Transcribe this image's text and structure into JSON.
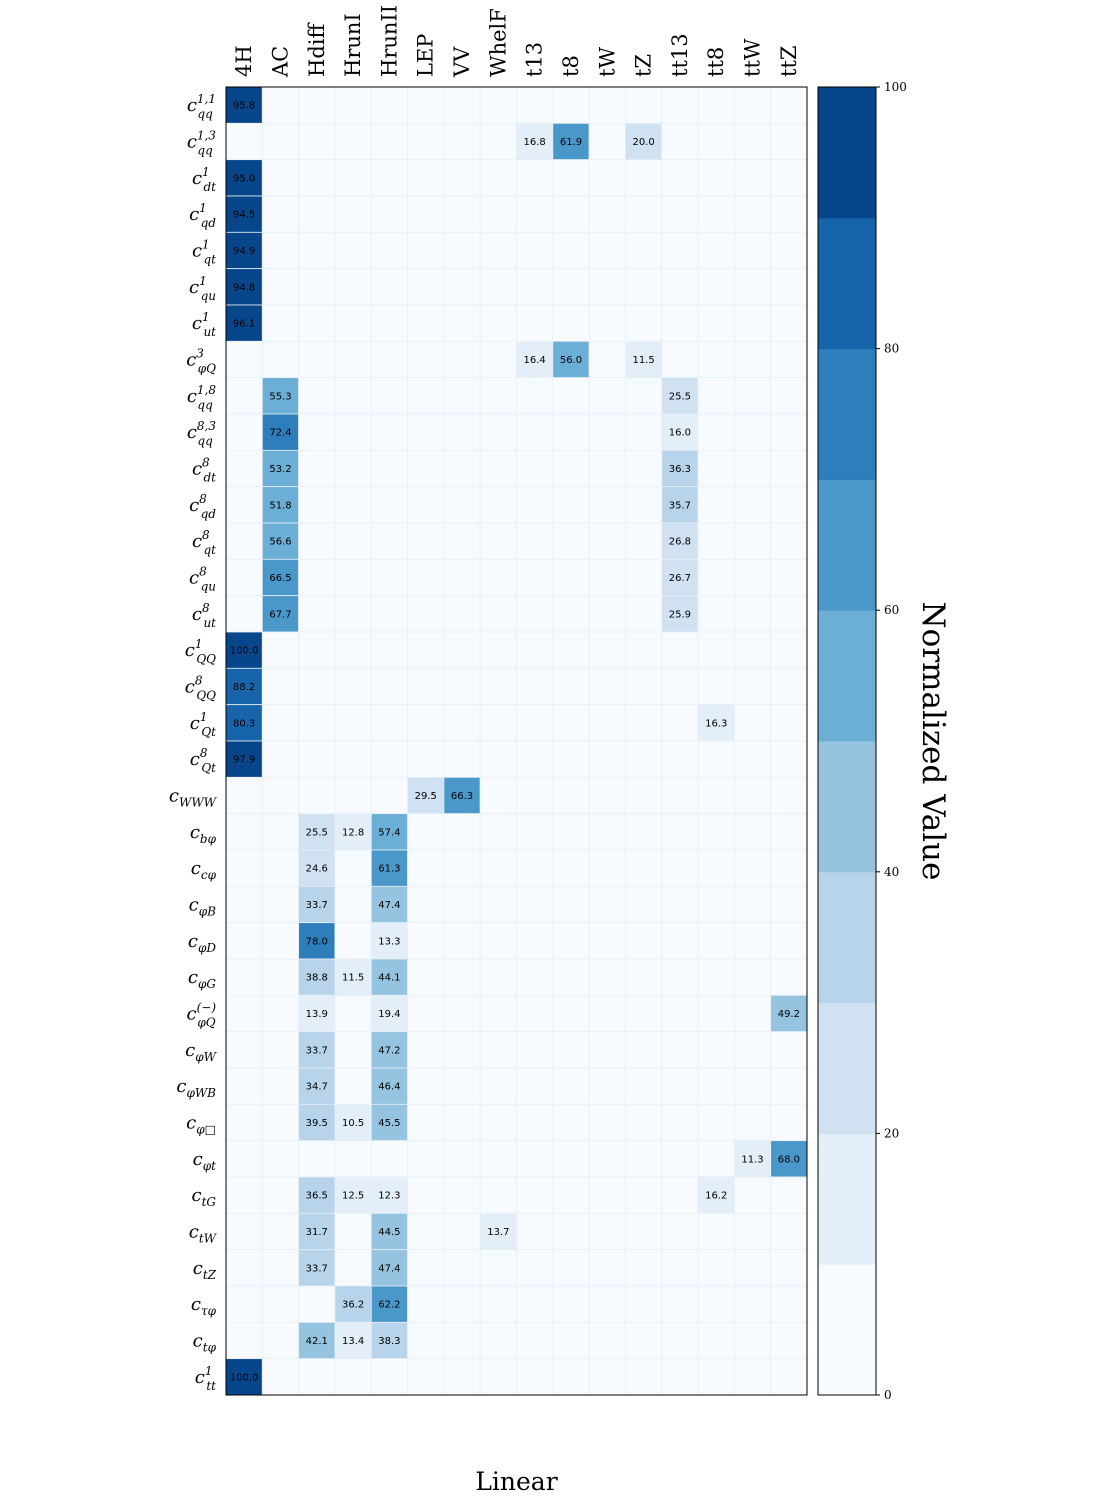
{
  "chart_data": {
    "type": "heatmap",
    "xlabel": "Linear",
    "colorbar": {
      "label": "Normalized Value",
      "range": [
        0,
        100
      ],
      "ticks": [
        0,
        20,
        40,
        60,
        80,
        100
      ],
      "levels": 10,
      "colors": [
        "#f7fbff",
        "#e3eef9",
        "#d0e1f2",
        "#b7d4ea",
        "#94c4df",
        "#6baed6",
        "#4a98c9",
        "#2e7ebc",
        "#1764ab",
        "#08468b"
      ]
    },
    "columns": [
      "4H",
      "AC",
      "Hdiff",
      "HrunI",
      "HrunII",
      "LEP",
      "VV",
      "WhelF",
      "t13",
      "t8",
      "tW",
      "tZ",
      "tt13",
      "tt8",
      "ttW",
      "ttZ"
    ],
    "rows": [
      {
        "base": "c",
        "sub": "qq",
        "sup": "1,1"
      },
      {
        "base": "c",
        "sub": "qq",
        "sup": "1,3"
      },
      {
        "base": "c",
        "sub": "dt",
        "sup": "1"
      },
      {
        "base": "c",
        "sub": "qd",
        "sup": "1"
      },
      {
        "base": "c",
        "sub": "qt",
        "sup": "1"
      },
      {
        "base": "c",
        "sub": "qu",
        "sup": "1"
      },
      {
        "base": "c",
        "sub": "ut",
        "sup": "1"
      },
      {
        "base": "c",
        "sub": "φQ",
        "sup": "3"
      },
      {
        "base": "c",
        "sub": "qq",
        "sup": "1,8"
      },
      {
        "base": "c",
        "sub": "qq",
        "sup": "8,3"
      },
      {
        "base": "c",
        "sub": "dt",
        "sup": "8"
      },
      {
        "base": "c",
        "sub": "qd",
        "sup": "8"
      },
      {
        "base": "c",
        "sub": "qt",
        "sup": "8"
      },
      {
        "base": "c",
        "sub": "qu",
        "sup": "8"
      },
      {
        "base": "c",
        "sub": "ut",
        "sup": "8"
      },
      {
        "base": "c",
        "sub": "QQ",
        "sup": "1"
      },
      {
        "base": "c",
        "sub": "QQ",
        "sup": "8"
      },
      {
        "base": "c",
        "sub": "Qt",
        "sup": "1"
      },
      {
        "base": "c",
        "sub": "Qt",
        "sup": "8"
      },
      {
        "base": "c",
        "sub": "WWW",
        "sup": ""
      },
      {
        "base": "c",
        "sub": "bφ",
        "sup": ""
      },
      {
        "base": "c",
        "sub": "cφ",
        "sup": ""
      },
      {
        "base": "c",
        "sub": "φB",
        "sup": ""
      },
      {
        "base": "c",
        "sub": "φD",
        "sup": ""
      },
      {
        "base": "c",
        "sub": "φG",
        "sup": ""
      },
      {
        "base": "c",
        "sub": "φQ",
        "sup": "(−)"
      },
      {
        "base": "c",
        "sub": "φW",
        "sup": ""
      },
      {
        "base": "c",
        "sub": "φWB",
        "sup": ""
      },
      {
        "base": "c",
        "sub": "φ□",
        "sup": ""
      },
      {
        "base": "c",
        "sub": "φt",
        "sup": ""
      },
      {
        "base": "c",
        "sub": "tG",
        "sup": ""
      },
      {
        "base": "c",
        "sub": "tW",
        "sup": ""
      },
      {
        "base": "c",
        "sub": "tZ",
        "sup": ""
      },
      {
        "base": "c",
        "sub": "τφ",
        "sup": ""
      },
      {
        "base": "c",
        "sub": "tφ",
        "sup": ""
      },
      {
        "base": "c",
        "sub": "tt",
        "sup": "1"
      }
    ],
    "values": [
      [
        95.8,
        null,
        null,
        null,
        null,
        null,
        null,
        null,
        null,
        null,
        null,
        null,
        null,
        null,
        null,
        null
      ],
      [
        null,
        null,
        null,
        null,
        null,
        null,
        null,
        null,
        16.8,
        61.9,
        null,
        20.0,
        null,
        null,
        null,
        null
      ],
      [
        95.0,
        null,
        null,
        null,
        null,
        null,
        null,
        null,
        null,
        null,
        null,
        null,
        null,
        null,
        null,
        null
      ],
      [
        94.5,
        null,
        null,
        null,
        null,
        null,
        null,
        null,
        null,
        null,
        null,
        null,
        null,
        null,
        null,
        null
      ],
      [
        94.9,
        null,
        null,
        null,
        null,
        null,
        null,
        null,
        null,
        null,
        null,
        null,
        null,
        null,
        null,
        null
      ],
      [
        94.8,
        null,
        null,
        null,
        null,
        null,
        null,
        null,
        null,
        null,
        null,
        null,
        null,
        null,
        null,
        null
      ],
      [
        96.1,
        null,
        null,
        null,
        null,
        null,
        null,
        null,
        null,
        null,
        null,
        null,
        null,
        null,
        null,
        null
      ],
      [
        null,
        null,
        null,
        null,
        null,
        null,
        null,
        null,
        16.4,
        56.0,
        null,
        11.5,
        null,
        null,
        null,
        null
      ],
      [
        null,
        55.3,
        null,
        null,
        null,
        null,
        null,
        null,
        null,
        null,
        null,
        null,
        25.5,
        null,
        null,
        null
      ],
      [
        null,
        72.4,
        null,
        null,
        null,
        null,
        null,
        null,
        null,
        null,
        null,
        null,
        16.0,
        null,
        null,
        null
      ],
      [
        null,
        53.2,
        null,
        null,
        null,
        null,
        null,
        null,
        null,
        null,
        null,
        null,
        36.3,
        null,
        null,
        null
      ],
      [
        null,
        51.8,
        null,
        null,
        null,
        null,
        null,
        null,
        null,
        null,
        null,
        null,
        35.7,
        null,
        null,
        null
      ],
      [
        null,
        56.6,
        null,
        null,
        null,
        null,
        null,
        null,
        null,
        null,
        null,
        null,
        26.8,
        null,
        null,
        null
      ],
      [
        null,
        66.5,
        null,
        null,
        null,
        null,
        null,
        null,
        null,
        null,
        null,
        null,
        26.7,
        null,
        null,
        null
      ],
      [
        null,
        67.7,
        null,
        null,
        null,
        null,
        null,
        null,
        null,
        null,
        null,
        null,
        25.9,
        null,
        null,
        null
      ],
      [
        100.0,
        null,
        null,
        null,
        null,
        null,
        null,
        null,
        null,
        null,
        null,
        null,
        null,
        null,
        null,
        null
      ],
      [
        88.2,
        null,
        null,
        null,
        null,
        null,
        null,
        null,
        null,
        null,
        null,
        null,
        null,
        null,
        null,
        null
      ],
      [
        80.3,
        null,
        null,
        null,
        null,
        null,
        null,
        null,
        null,
        null,
        null,
        null,
        null,
        16.3,
        null,
        null
      ],
      [
        97.9,
        null,
        null,
        null,
        null,
        null,
        null,
        null,
        null,
        null,
        null,
        null,
        null,
        null,
        null,
        null
      ],
      [
        null,
        null,
        null,
        null,
        null,
        29.5,
        66.3,
        null,
        null,
        null,
        null,
        null,
        null,
        null,
        null,
        null
      ],
      [
        null,
        null,
        25.5,
        12.8,
        57.4,
        null,
        null,
        null,
        null,
        null,
        null,
        null,
        null,
        null,
        null,
        null
      ],
      [
        null,
        null,
        24.6,
        null,
        61.3,
        null,
        null,
        null,
        null,
        null,
        null,
        null,
        null,
        null,
        null,
        null
      ],
      [
        null,
        null,
        33.7,
        null,
        47.4,
        null,
        null,
        null,
        null,
        null,
        null,
        null,
        null,
        null,
        null,
        null
      ],
      [
        null,
        null,
        78.0,
        null,
        13.3,
        null,
        null,
        null,
        null,
        null,
        null,
        null,
        null,
        null,
        null,
        null
      ],
      [
        null,
        null,
        38.8,
        11.5,
        44.1,
        null,
        null,
        null,
        null,
        null,
        null,
        null,
        null,
        null,
        null,
        null
      ],
      [
        null,
        null,
        13.9,
        null,
        19.4,
        null,
        null,
        null,
        null,
        null,
        null,
        null,
        null,
        null,
        null,
        49.2
      ],
      [
        null,
        null,
        33.7,
        null,
        47.2,
        null,
        null,
        null,
        null,
        null,
        null,
        null,
        null,
        null,
        null,
        null
      ],
      [
        null,
        null,
        34.7,
        null,
        46.4,
        null,
        null,
        null,
        null,
        null,
        null,
        null,
        null,
        null,
        null,
        null
      ],
      [
        null,
        null,
        39.5,
        10.5,
        45.5,
        null,
        null,
        null,
        null,
        null,
        null,
        null,
        null,
        null,
        null,
        null
      ],
      [
        null,
        null,
        null,
        null,
        null,
        null,
        null,
        null,
        null,
        null,
        null,
        null,
        null,
        null,
        11.3,
        68.0
      ],
      [
        null,
        null,
        36.5,
        12.5,
        12.3,
        null,
        null,
        null,
        null,
        null,
        null,
        null,
        null,
        16.2,
        null,
        null
      ],
      [
        null,
        null,
        31.7,
        null,
        44.5,
        null,
        null,
        13.7,
        null,
        null,
        null,
        null,
        null,
        null,
        null,
        null
      ],
      [
        null,
        null,
        33.7,
        null,
        47.4,
        null,
        null,
        null,
        null,
        null,
        null,
        null,
        null,
        null,
        null,
        null
      ],
      [
        null,
        null,
        null,
        36.2,
        62.2,
        null,
        null,
        null,
        null,
        null,
        null,
        null,
        null,
        null,
        null,
        null
      ],
      [
        null,
        null,
        42.1,
        13.4,
        38.3,
        null,
        null,
        null,
        null,
        null,
        null,
        null,
        null,
        null,
        null,
        null
      ],
      [
        100.0,
        null,
        null,
        null,
        null,
        null,
        null,
        null,
        null,
        null,
        null,
        null,
        null,
        null,
        null,
        null
      ]
    ]
  }
}
